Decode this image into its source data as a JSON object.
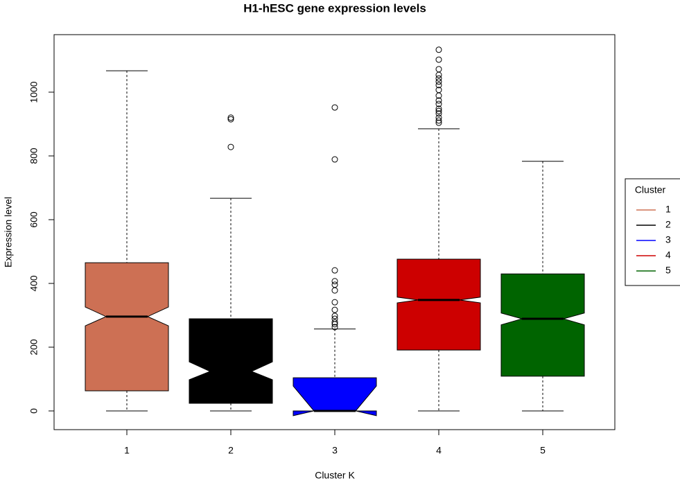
{
  "chart_data": {
    "type": "boxplot",
    "title": "H1-hESC gene expression levels",
    "x_label": "Cluster K",
    "y_label": "Expression level",
    "categories": [
      "1",
      "2",
      "3",
      "4",
      "5"
    ],
    "ylim": [
      -58.7,
      1180.4
    ],
    "yticks": [
      0,
      200,
      400,
      600,
      800,
      1000
    ],
    "notch": true,
    "legend_title": "Cluster",
    "legend_position": "right",
    "series": [
      {
        "name": "1",
        "color": "#cd7054",
        "whislo": 0,
        "q1": 63,
        "med": 296,
        "q3": 465,
        "whishi": 1067,
        "notch_lo": 267,
        "notch_hi": 326,
        "outliers": []
      },
      {
        "name": "2",
        "color": "#000000",
        "whislo": 0,
        "q1": 24,
        "med": 124,
        "q3": 289,
        "whishi": 667,
        "notch_lo": 98,
        "notch_hi": 154,
        "outliers": [
          920,
          915,
          828
        ]
      },
      {
        "name": "3",
        "color": "#0000ff",
        "whislo": 0,
        "q1": 0,
        "med": 0,
        "q3": 104,
        "whishi": 257,
        "notch_lo": -15,
        "notch_hi": 78,
        "outliers": [
          952,
          789,
          441,
          407,
          396,
          378,
          341,
          317,
          298,
          289,
          278,
          272,
          263
        ]
      },
      {
        "name": "4",
        "color": "#cd0000",
        "whislo": 0,
        "q1": 191,
        "med": 348,
        "q3": 476,
        "whishi": 885,
        "notch_lo": 339,
        "notch_hi": 357,
        "outliers": [
          1133,
          1102,
          1072,
          1054,
          1043,
          1033,
          1022,
          1007,
          989,
          974,
          963,
          948,
          941,
          933,
          920,
          911,
          904
        ]
      },
      {
        "name": "5",
        "color": "#006400",
        "whislo": 0,
        "q1": 109,
        "med": 289,
        "q3": 430,
        "whishi": 783,
        "notch_lo": 270,
        "notch_hi": 307,
        "outliers": []
      }
    ]
  }
}
